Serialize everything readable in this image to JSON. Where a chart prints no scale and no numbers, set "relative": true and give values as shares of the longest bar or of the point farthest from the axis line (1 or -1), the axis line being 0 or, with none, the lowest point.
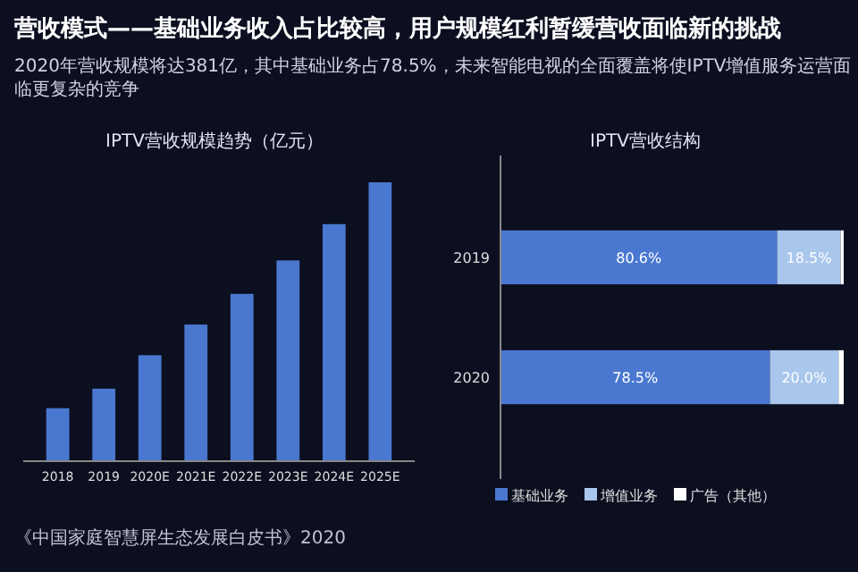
{
  "chart_data": [
    {
      "type": "other",
      "title": "营收模式——基础业务收入占比较高，用户规模红利暂缓营收面临新的挑战",
      "subtitle": "2020年营收规模将达381亿，其中基础业务占78.5%，未来智能电视的全面覆盖将使IPTV增值服务运营面临更复杂的竞争",
      "annotations": [
        "《中国家庭智慧屏生态发展白皮书》2020"
      ]
    },
    {
      "type": "bar",
      "title": "IPTV营收规模趋势（亿元）",
      "relative": true,
      "categories": [
        "2018",
        "2019",
        "2020E",
        "2021E",
        "2022E",
        "2023E",
        "2024E",
        "2025E"
      ],
      "values": [
        0.19,
        0.26,
        0.38,
        0.49,
        0.6,
        0.72,
        0.85,
        1
      ],
      "color": "#4a78d0"
    },
    {
      "type": "bar",
      "title": "IPTV营收结构",
      "orientation": "horizontal",
      "stacked": true,
      "categories": [
        "2019",
        "2020"
      ],
      "xlim": [
        0,
        100
      ],
      "tick_labels": "y",
      "legend": "bottom",
      "series": [
        {
          "name": "基础业务",
          "color": "#4a78d0",
          "values": [
            80.6,
            78.5
          ],
          "value_labels": [
            "80.6%",
            "78.5%"
          ]
        },
        {
          "name": "增值业务",
          "color": "#a9c6ec",
          "values": [
            18.5,
            20.0
          ],
          "value_labels": [
            "18.5%",
            "20.0%"
          ]
        },
        {
          "name": "广告（其他）",
          "color": "#ffffff",
          "values": [
            0.9,
            1.5
          ],
          "value_labels": [
            null,
            null
          ]
        }
      ]
    }
  ]
}
